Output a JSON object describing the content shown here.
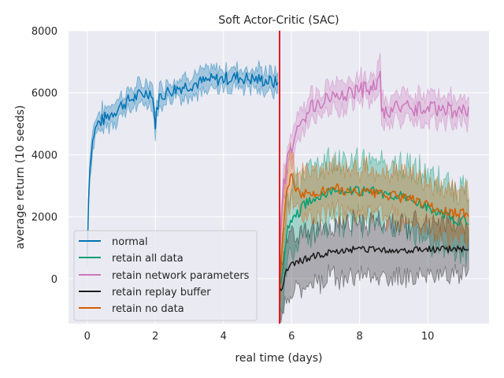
{
  "chart_data": {
    "type": "line",
    "title": "Soft Actor-Critic (SAC)",
    "xlabel": "real time (days)",
    "ylabel": "average return (10 seeds)",
    "xlim": [
      -0.55,
      11.8
    ],
    "ylim": [
      -1450,
      8000
    ],
    "xticks": [
      0,
      2,
      4,
      6,
      8,
      10
    ],
    "yticks": [
      0,
      2000,
      4000,
      6000,
      8000
    ],
    "grid": true,
    "legend_position": "lower-left",
    "vline": {
      "x": 5.65,
      "color": "#e8000b"
    },
    "series": [
      {
        "name": "normal",
        "color": "#0173b2",
        "points": [
          [
            0.0,
            700
          ],
          [
            0.03,
            2500
          ],
          [
            0.1,
            4000
          ],
          [
            0.2,
            4700
          ],
          [
            0.3,
            5000
          ],
          [
            0.5,
            5150
          ],
          [
            0.8,
            5400
          ],
          [
            1.0,
            5600
          ],
          [
            1.3,
            5800
          ],
          [
            1.6,
            5950
          ],
          [
            1.9,
            6050
          ],
          [
            2.0,
            5000
          ],
          [
            2.1,
            5850
          ],
          [
            2.4,
            6050
          ],
          [
            2.8,
            6200
          ],
          [
            3.2,
            6300
          ],
          [
            3.6,
            6400
          ],
          [
            4.0,
            6450
          ],
          [
            4.4,
            6500
          ],
          [
            4.8,
            6450
          ],
          [
            5.2,
            6400
          ],
          [
            5.6,
            6300
          ]
        ],
        "band": 320,
        "noise": 220
      },
      {
        "name": "retain all data",
        "color": "#029e73",
        "points": [
          [
            5.65,
            -300
          ],
          [
            5.75,
            300
          ],
          [
            5.9,
            1700
          ],
          [
            6.1,
            2000
          ],
          [
            6.4,
            2400
          ],
          [
            6.8,
            2700
          ],
          [
            7.2,
            2850
          ],
          [
            7.6,
            2850
          ],
          [
            8.0,
            2800
          ],
          [
            8.4,
            2800
          ],
          [
            8.8,
            2750
          ],
          [
            9.2,
            2650
          ],
          [
            9.6,
            2500
          ],
          [
            10.0,
            2300
          ],
          [
            10.4,
            2100
          ],
          [
            10.8,
            1900
          ],
          [
            11.2,
            1900
          ]
        ],
        "band": 1000,
        "noise": 170
      },
      {
        "name": "retain network parameters",
        "color": "#cc78bc",
        "points": [
          [
            5.65,
            800
          ],
          [
            5.75,
            3000
          ],
          [
            5.9,
            3800
          ],
          [
            6.1,
            4600
          ],
          [
            6.4,
            5300
          ],
          [
            6.8,
            5700
          ],
          [
            7.2,
            5900
          ],
          [
            7.6,
            6000
          ],
          [
            8.0,
            6100
          ],
          [
            8.4,
            6150
          ],
          [
            8.6,
            6550
          ],
          [
            8.65,
            5300
          ],
          [
            9.0,
            5450
          ],
          [
            9.4,
            5500
          ],
          [
            9.8,
            5500
          ],
          [
            10.2,
            5550
          ],
          [
            10.6,
            5450
          ],
          [
            11.0,
            5400
          ],
          [
            11.2,
            5400
          ]
        ],
        "band": 420,
        "noise": 280
      },
      {
        "name": "retain replay buffer",
        "color": "#1a1a1a",
        "points": [
          [
            5.65,
            -200
          ],
          [
            5.7,
            -500
          ],
          [
            5.8,
            200
          ],
          [
            5.9,
            350
          ],
          [
            6.2,
            550
          ],
          [
            6.6,
            700
          ],
          [
            7.0,
            800
          ],
          [
            7.4,
            900
          ],
          [
            7.8,
            950
          ],
          [
            8.2,
            950
          ],
          [
            8.6,
            950
          ],
          [
            9.0,
            900
          ],
          [
            9.4,
            900
          ],
          [
            9.8,
            950
          ],
          [
            10.2,
            950
          ],
          [
            10.6,
            950
          ],
          [
            11.0,
            950
          ],
          [
            11.2,
            950
          ]
        ],
        "band": 850,
        "noise": 110
      },
      {
        "name": "retain no data",
        "color": "#d55e00",
        "points": [
          [
            5.65,
            -300
          ],
          [
            5.75,
            1500
          ],
          [
            5.85,
            2900
          ],
          [
            6.0,
            3300
          ],
          [
            6.2,
            2800
          ],
          [
            6.5,
            2700
          ],
          [
            6.9,
            2800
          ],
          [
            7.3,
            2900
          ],
          [
            7.7,
            2800
          ],
          [
            8.1,
            2800
          ],
          [
            8.5,
            2750
          ],
          [
            8.9,
            2700
          ],
          [
            9.3,
            2600
          ],
          [
            9.7,
            2500
          ],
          [
            10.1,
            2300
          ],
          [
            10.5,
            2200
          ],
          [
            10.9,
            2100
          ],
          [
            11.2,
            2100
          ]
        ],
        "band": 750,
        "noise": 170
      }
    ]
  },
  "legend": {
    "items": [
      {
        "label": "normal",
        "color": "#0173b2"
      },
      {
        "label": "retain all data",
        "color": "#029e73"
      },
      {
        "label": "retain network parameters",
        "color": "#cc78bc"
      },
      {
        "label": "retain replay buffer",
        "color": "#1a1a1a"
      },
      {
        "label": "retain no data",
        "color": "#d55e00"
      }
    ]
  }
}
